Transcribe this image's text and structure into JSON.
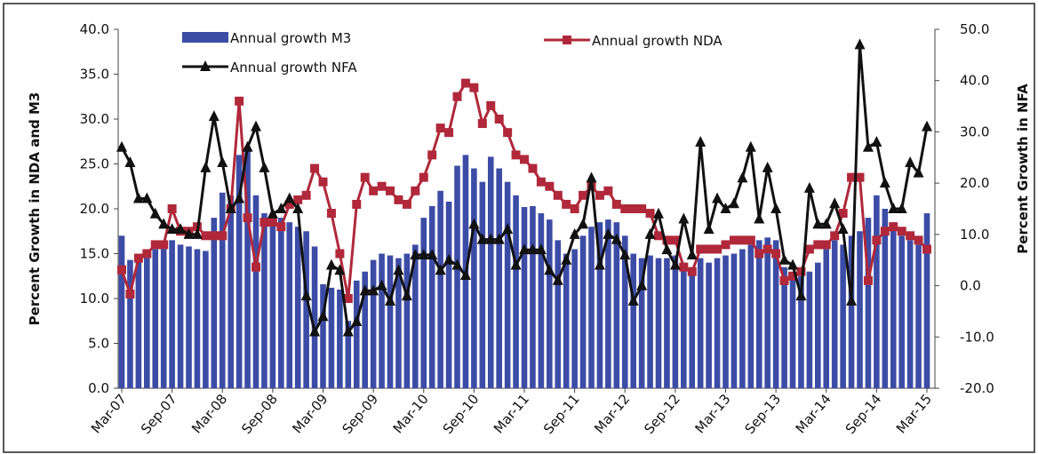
{
  "chart_data": {
    "type": "bar-line",
    "y_label": "Percent Growth in NDA and M3",
    "y2_label": "Percent Growth in NFA",
    "categories": [
      "Mar-07",
      null,
      null,
      null,
      null,
      null,
      "Sep-07",
      null,
      null,
      null,
      null,
      null,
      "Mar-08",
      null,
      null,
      null,
      null,
      null,
      "Sep-08",
      null,
      null,
      null,
      null,
      null,
      "Mar-09",
      null,
      null,
      null,
      null,
      null,
      "Sep-09",
      null,
      null,
      null,
      null,
      null,
      "Mar-10",
      null,
      null,
      null,
      null,
      null,
      "Sep-10",
      null,
      null,
      null,
      null,
      null,
      "Mar-11",
      null,
      null,
      null,
      null,
      null,
      "Sep-11",
      null,
      null,
      null,
      null,
      null,
      "Mar-12",
      null,
      null,
      null,
      null,
      null,
      "Sep-12",
      null,
      null,
      null,
      null,
      null,
      "Mar-13",
      null,
      null,
      null,
      null,
      null,
      "Sep-13",
      null,
      null,
      null,
      null,
      null,
      "Mar-14",
      null,
      null,
      null,
      null,
      null,
      "Sep-14",
      null,
      null,
      null,
      null,
      null,
      "Mar-15"
    ],
    "ylim": [
      0,
      40
    ],
    "yticks": [
      {
        "value": 0,
        "label": "0.0"
      },
      {
        "value": 5,
        "label": "5.0"
      },
      {
        "value": 10,
        "label": "10.0"
      },
      {
        "value": 15,
        "label": "15.0"
      },
      {
        "value": 20,
        "label": "20.0"
      },
      {
        "value": 25,
        "label": "25.0"
      },
      {
        "value": 30,
        "label": "30.0"
      },
      {
        "value": 35,
        "label": "35.0"
      },
      {
        "value": 40,
        "label": "40.0"
      }
    ],
    "y2lim": [
      -20,
      50
    ],
    "y2ticks": [
      {
        "value": -20,
        "label": "-20.0"
      },
      {
        "value": -10,
        "label": "-10.0"
      },
      {
        "value": 0,
        "label": "0.0"
      },
      {
        "value": 10,
        "label": "10.0"
      },
      {
        "value": 20,
        "label": "20.0"
      },
      {
        "value": 30,
        "label": "30.0"
      },
      {
        "value": 40,
        "label": "40.0"
      },
      {
        "value": 50,
        "label": "50.0"
      }
    ],
    "series": [
      {
        "name": "Annual growth M3",
        "kind": "bar",
        "color": "#3c4ca6",
        "values": [
          17.0,
          14.3,
          15.0,
          15.5,
          15.5,
          16.0,
          16.5,
          16.0,
          15.8,
          15.5,
          15.3,
          19.0,
          21.8,
          21.5,
          26.0,
          26.5,
          21.5,
          19.5,
          19.2,
          19.0,
          18.5,
          18.0,
          17.5,
          15.8,
          11.6,
          11.2,
          11.0,
          7.5,
          12.0,
          13.0,
          14.3,
          15.0,
          14.8,
          14.5,
          15.0,
          16.0,
          19.0,
          20.3,
          22.0,
          20.8,
          24.8,
          26.0,
          24.5,
          23.0,
          25.8,
          24.5,
          23.0,
          21.5,
          20.2,
          20.3,
          19.5,
          18.8,
          16.5,
          15.0,
          15.5,
          17.0,
          18.0,
          18.5,
          18.8,
          18.5,
          17.0,
          15.0,
          14.5,
          14.8,
          14.5,
          14.5,
          14.8,
          14.0,
          13.5,
          14.5,
          14.0,
          14.5,
          14.8,
          15.0,
          15.5,
          16.0,
          16.5,
          16.8,
          16.5,
          13.5,
          12.5,
          12.5,
          13.0,
          14.0,
          15.5,
          16.5,
          16.0,
          17.0,
          17.5,
          19.0,
          21.5,
          20.0,
          18.5,
          17.0,
          16.5,
          16.0,
          19.5
        ]
      },
      {
        "name": "Annual growth NDA",
        "kind": "line",
        "color": "#b0283a",
        "values": [
          13.2,
          10.5,
          14.5,
          15.0,
          16.0,
          16.0,
          20.0,
          17.5,
          17.5,
          18.0,
          17.0,
          17.0,
          17.0,
          20.0,
          32.0,
          19.0,
          13.5,
          18.5,
          18.5,
          18.0,
          20.5,
          21.0,
          21.5,
          24.5,
          23.0,
          19.5,
          15.0,
          10.0,
          20.5,
          23.5,
          22.0,
          22.5,
          22.0,
          21.0,
          20.5,
          22.0,
          23.5,
          26.0,
          29.0,
          28.5,
          32.5,
          34.0,
          33.5,
          29.5,
          31.5,
          30.0,
          28.5,
          26.0,
          25.5,
          24.5,
          23.0,
          22.5,
          21.5,
          20.5,
          20.0,
          21.5,
          22.5,
          21.5,
          22.0,
          20.5,
          20.0,
          20.0,
          20.0,
          19.5,
          17.0,
          16.5,
          16.5,
          13.5,
          13.0,
          15.5,
          15.5,
          15.5,
          16.0,
          16.5,
          16.5,
          16.5,
          15.0,
          15.5,
          15.0,
          12.0,
          12.5,
          13.0,
          15.5,
          16.0,
          16.0,
          17.0,
          19.5,
          23.5,
          23.5,
          12.0,
          16.5,
          17.5,
          18.0,
          17.5,
          17.0,
          16.5,
          15.5
        ]
      },
      {
        "name": "Annual growth NFA",
        "kind": "line",
        "axis": "y2",
        "color": "#111111",
        "values": [
          27,
          24,
          17,
          17,
          14,
          12,
          11,
          11,
          10,
          10,
          23,
          33,
          24,
          15,
          17,
          27,
          31,
          23,
          14,
          15,
          17,
          15,
          -2,
          -9,
          -6,
          4,
          3,
          -9,
          -7,
          -1,
          -1,
          0,
          -3,
          3,
          -2,
          6,
          6,
          6,
          3,
          5,
          4,
          2,
          12,
          9,
          9,
          9,
          11,
          4,
          7,
          7,
          7,
          3,
          1,
          5,
          10,
          12,
          21,
          4,
          10,
          9,
          6,
          -3,
          0,
          10,
          14,
          7,
          4,
          13,
          6,
          28,
          11,
          17,
          15,
          16,
          21,
          27,
          13,
          23,
          15,
          5,
          4,
          -2,
          19,
          12,
          12,
          16,
          11,
          -3,
          47,
          27,
          28,
          20,
          15,
          15,
          24,
          22,
          31
        ]
      }
    ]
  }
}
